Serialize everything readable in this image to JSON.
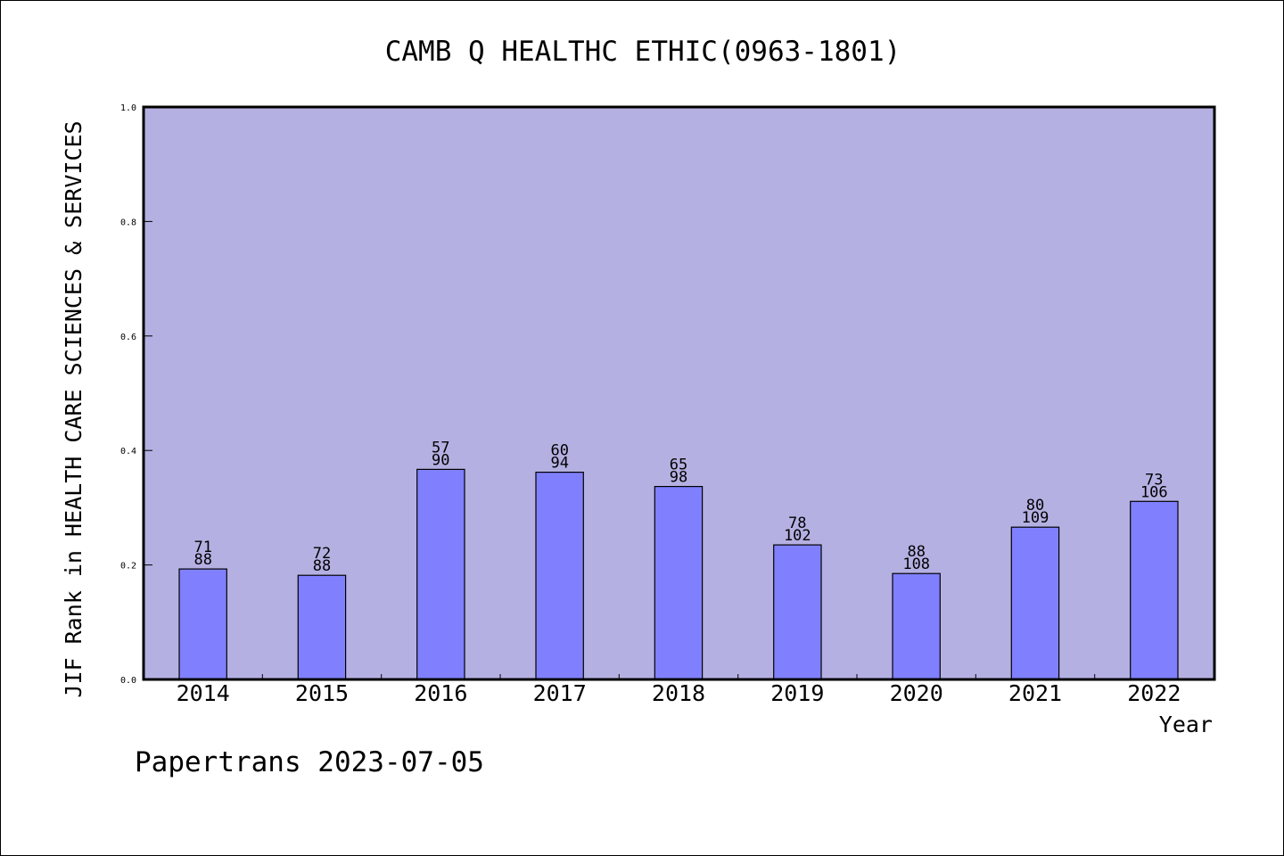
{
  "chart_data": {
    "type": "bar",
    "title": "CAMB Q HEALTHC ETHIC(0963-1801)",
    "xlabel": "Year",
    "ylabel": "JIF Rank in HEALTH CARE SCIENCES & SERVICES",
    "ylim": [
      0,
      1.0
    ],
    "yticks": [
      "0.0",
      "0.2",
      "0.4",
      "0.6",
      "0.8",
      "1.0"
    ],
    "categories": [
      "2014",
      "2015",
      "2016",
      "2017",
      "2018",
      "2019",
      "2020",
      "2021",
      "2022"
    ],
    "values": [
      0.193,
      0.182,
      0.367,
      0.362,
      0.337,
      0.235,
      0.185,
      0.266,
      0.311
    ],
    "rank": [
      "71",
      "72",
      "57",
      "60",
      "65",
      "78",
      "88",
      "80",
      "73"
    ],
    "total": [
      "88",
      "88",
      "90",
      "94",
      "98",
      "102",
      "108",
      "109",
      "106"
    ],
    "grid": false,
    "colors": {
      "plot_background": "#b5b0e2",
      "bar_fill": "#8080ff",
      "bar_stroke": "#000000"
    }
  },
  "footer": {
    "text": "Papertrans 2023-07-05"
  }
}
